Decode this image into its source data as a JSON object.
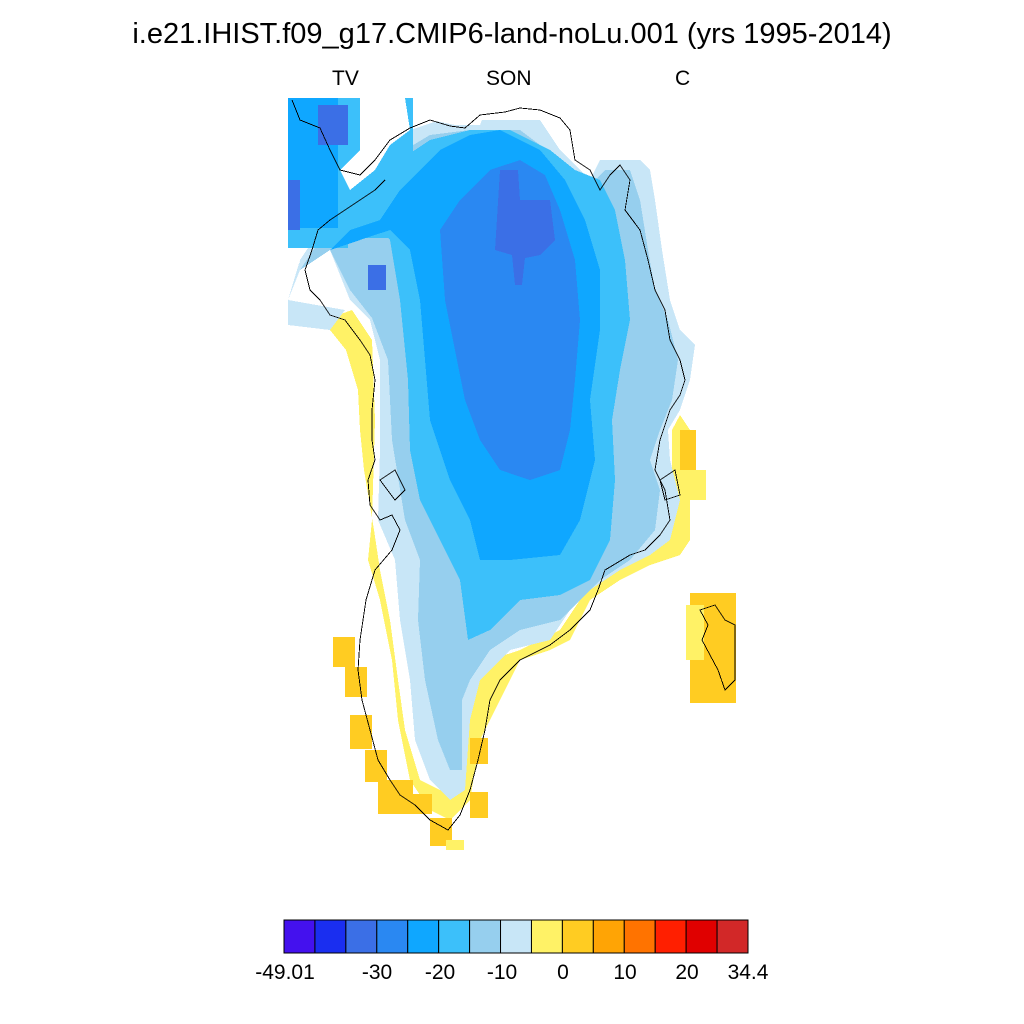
{
  "title": "i.e21.IHIST.f09_g17.CMIP6-land-noLu.001 (yrs 1995-2014)",
  "subtitle": {
    "left": "TV",
    "center": "SON",
    "right": "C"
  },
  "colorbar": {
    "colors": [
      "#4411ee",
      "#1a2ef0",
      "#3b6fe6",
      "#2a88f2",
      "#0fa7ff",
      "#3cc0fa",
      "#96cfee",
      "#c8e6f7",
      "#fff266",
      "#ffcc22",
      "#ffa405",
      "#ff7300",
      "#ff1f00",
      "#e00000",
      "#d22828"
    ],
    "tick_labels": [
      "-49.01",
      "-30",
      "-20",
      "-10",
      "0",
      "10",
      "20",
      "34.4"
    ]
  }
}
